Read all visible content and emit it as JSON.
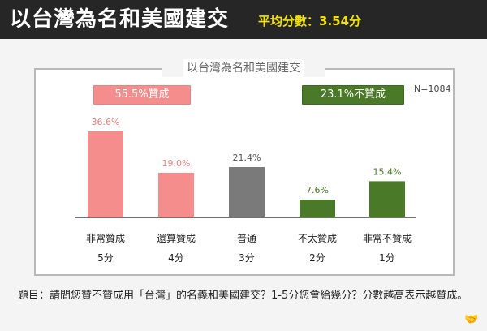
{
  "header": {
    "title": "以台灣為名和美國建交",
    "subtitle": "平均分數：3.54分"
  },
  "panel": {
    "title": "以台灣為名和美國建交",
    "n_label": "N=1084",
    "approve_badge": "55.5%贊成",
    "disapprove_badge": "23.1%不贊成"
  },
  "footnote": "題目：請問您贊不贊成用「台灣」的名義和美國建交？1-5分您會給幾分？分數越高表示越贊成。",
  "colors": {
    "header_bg": "#262626",
    "subtitle": "#f2e200",
    "approve": "#f58d8d",
    "neutral": "#7a7a7a",
    "disapprove": "#4a7a27"
  },
  "chart_data": {
    "type": "bar",
    "categories": [
      "非常贊成",
      "還算贊成",
      "普通",
      "不太贊成",
      "非常不贊成"
    ],
    "scores": [
      "5分",
      "4分",
      "3分",
      "2分",
      "1分"
    ],
    "values": [
      36.6,
      19.0,
      21.4,
      7.6,
      15.4
    ],
    "value_labels": [
      "36.6%",
      "19.0%",
      "21.4%",
      "7.6%",
      "15.4%"
    ],
    "bar_colors": [
      "#f58d8d",
      "#f58d8d",
      "#7a7a7a",
      "#4a7a27",
      "#4a7a27"
    ],
    "label_colors": [
      "#f07f7f",
      "#f07f7f",
      "#555555",
      "#4a7a27",
      "#4a7a27"
    ],
    "ylim": [
      0,
      40
    ],
    "grid": false
  }
}
